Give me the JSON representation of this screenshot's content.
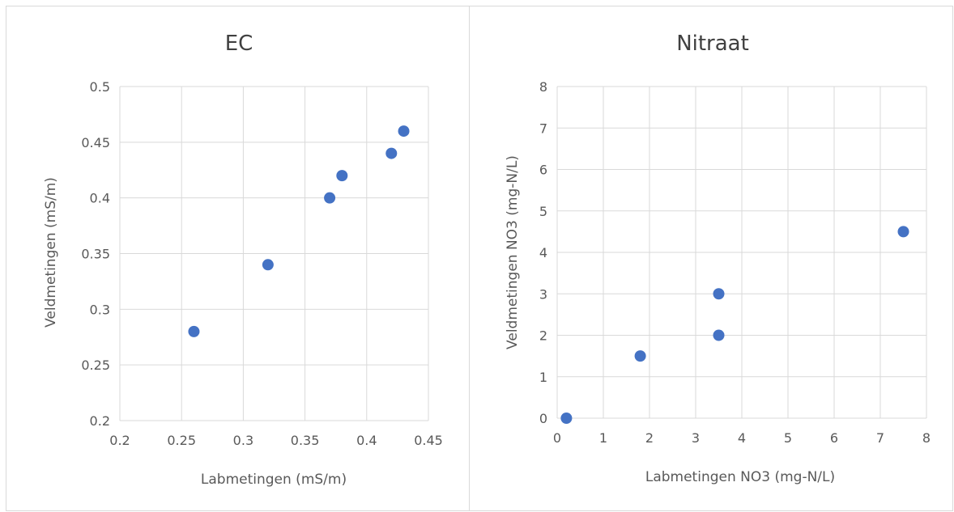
{
  "chart_data": [
    {
      "type": "scatter",
      "title": "EC",
      "xlabel": "Labmetingen (mS/m)",
      "ylabel": "Veldmetingen (mS/m)",
      "xlim": [
        0.2,
        0.45
      ],
      "ylim": [
        0.2,
        0.5
      ],
      "x_ticks": [
        "0.2",
        "0.25",
        "0.3",
        "0.35",
        "0.4",
        "0.45"
      ],
      "y_ticks": [
        "0.2",
        "0.25",
        "0.3",
        "0.35",
        "0.4",
        "0.45",
        "0.5"
      ],
      "grid": true,
      "marker_color": "#4472C4",
      "points": [
        {
          "x": 0.26,
          "y": 0.28
        },
        {
          "x": 0.32,
          "y": 0.34
        },
        {
          "x": 0.37,
          "y": 0.4
        },
        {
          "x": 0.38,
          "y": 0.42
        },
        {
          "x": 0.42,
          "y": 0.44
        },
        {
          "x": 0.43,
          "y": 0.46
        }
      ]
    },
    {
      "type": "scatter",
      "title": "Nitraat",
      "xlabel": "Labmetingen NO3 (mg-N/L)",
      "ylabel": "Veldmetingen NO3 (mg-N/L)",
      "xlim": [
        0,
        8
      ],
      "ylim": [
        0,
        8
      ],
      "x_ticks": [
        "0",
        "1",
        "2",
        "3",
        "4",
        "5",
        "6",
        "7",
        "8"
      ],
      "y_ticks": [
        "0",
        "1",
        "2",
        "3",
        "4",
        "5",
        "6",
        "7",
        "8"
      ],
      "grid": true,
      "marker_color": "#4472C4",
      "points": [
        {
          "x": 0.2,
          "y": 0
        },
        {
          "x": 1.8,
          "y": 1.5
        },
        {
          "x": 3.5,
          "y": 2
        },
        {
          "x": 3.5,
          "y": 3
        },
        {
          "x": 7.5,
          "y": 4.5
        }
      ]
    }
  ]
}
